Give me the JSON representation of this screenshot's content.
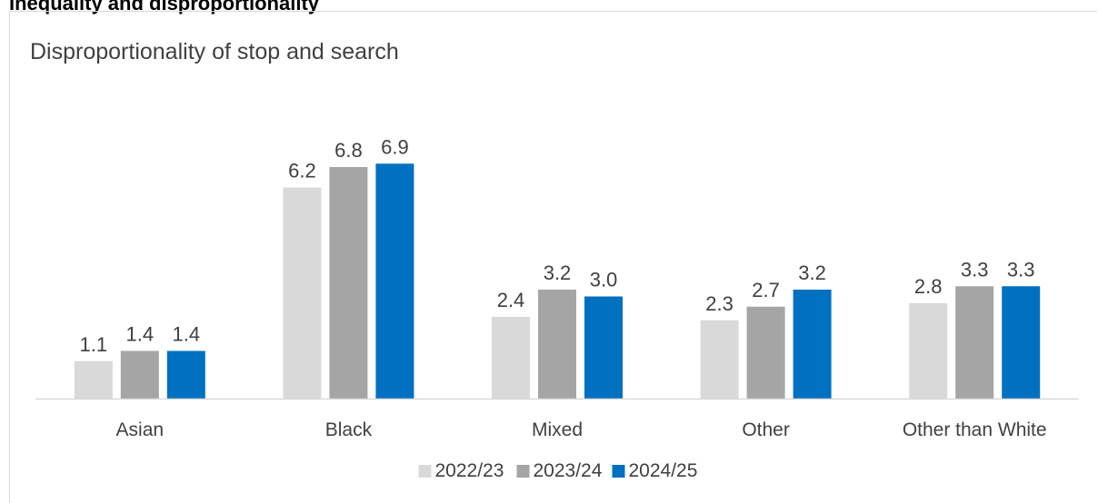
{
  "section_heading": "Inequality and disproportionality",
  "chart_data": {
    "type": "bar",
    "title": "Disproportionality of stop and search",
    "categories": [
      "Asian",
      "Black",
      "Mixed",
      "Other",
      "Other than White"
    ],
    "series": [
      {
        "name": "2022/23",
        "color": "#d9d9d9",
        "values": [
          1.1,
          6.2,
          2.4,
          2.3,
          2.8
        ]
      },
      {
        "name": "2023/24",
        "color": "#a5a5a5",
        "values": [
          1.4,
          6.8,
          3.2,
          2.7,
          3.3
        ]
      },
      {
        "name": "2024/25",
        "color": "#0070c0",
        "values": [
          1.4,
          6.9,
          3.0,
          3.2,
          3.3
        ]
      }
    ],
    "data_labels": [
      [
        "1.1",
        "6.2",
        "2.4",
        "2.3",
        "2.8"
      ],
      [
        "1.4",
        "6.8",
        "3.2",
        "2.7",
        "3.3"
      ],
      [
        "1.4",
        "6.9",
        "3.0",
        "3.2",
        "3.3"
      ]
    ],
    "xlabel": "",
    "ylabel": "",
    "ylim": [
      0,
      9
    ],
    "grid": false,
    "legend_position": "bottom",
    "axis_color": "#d9d9d9"
  }
}
